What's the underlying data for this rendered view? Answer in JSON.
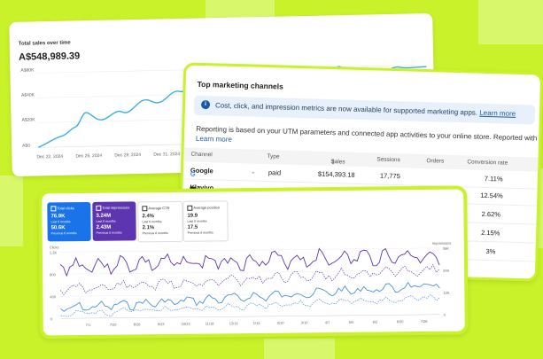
{
  "sales": {
    "title": "Total sales over time",
    "value": "A$548,989.39",
    "y_ticks": [
      "A$80K",
      "A$40K",
      "A$20K",
      "A$0"
    ],
    "x_ticks": [
      "Dec 22, 2024",
      "Dec 25, 2024",
      "Dec 28, 2024",
      "Dec 31, 2024"
    ],
    "line_color": "#3bb0e6"
  },
  "marketing": {
    "title": "Top marketing channels",
    "banner_text": "Cost, click, and impression metrics are now available for supported marketing apps.",
    "banner_link": "Learn more",
    "desc_line1": "Reporting is based on your UTM parameters and connected app activities to your online store. Reported with a 30-",
    "desc_link": "Learn more",
    "columns": [
      "Channel",
      "Type",
      "Sales",
      "Sessions",
      "Orders",
      "Conversion rate"
    ],
    "rows": [
      {
        "icon": "google-icon",
        "channel": "Google",
        "type": "paid",
        "sales": "$154,393.18",
        "sessions": "17,775",
        "orders": "",
        "conversion": "7.11%"
      },
      {
        "icon": "klaviyo-icon",
        "channel": "Klaviyo",
        "type": "",
        "sales": "",
        "sessions": "",
        "orders": "",
        "conversion": "12.54%"
      },
      {
        "channel": "",
        "conversion": "2.62%"
      },
      {
        "channel": "",
        "conversion": "2.15%"
      },
      {
        "channel": "",
        "conversion": "3%"
      }
    ]
  },
  "search_console": {
    "metrics": [
      {
        "label": "Total clicks",
        "value1": "76.9K",
        "sub1": "Last 6 months",
        "value2": "50.6K",
        "sub2": "Previous 6 months",
        "color": "#1a73e8",
        "light": false
      },
      {
        "label": "Total impressions",
        "value1": "3.24M",
        "sub1": "Last 6 months",
        "value2": "2.43M",
        "sub2": "Previous 6 months",
        "color": "#5e35b1",
        "light": false
      },
      {
        "label": "Average CTR",
        "value1": "2.4%",
        "sub1": "Last 6 months",
        "value2": "2.1%",
        "sub2": "Previous 6 months",
        "color": "#ffffff",
        "light": true
      },
      {
        "label": "Average position",
        "value1": "19.9",
        "sub1": "Last 6 months",
        "value2": "17.5",
        "sub2": "Previous 6 months",
        "color": "#ffffff",
        "light": true
      }
    ],
    "left_axis_title": "Clicks",
    "right_axis_title": "Impressions",
    "left_ticks": [
      "1.2K",
      "800",
      "400",
      "0"
    ],
    "right_ticks": [
      "36K",
      "24K",
      "12K",
      "0"
    ],
    "x_ticks": [
      "7/1",
      "7/29",
      "8/26",
      "9/23",
      "10/21",
      "11/18",
      "12/16",
      "1/13",
      "2/10",
      "3/10",
      "4/7",
      "5/5",
      "6/2",
      "6/30",
      "7/28"
    ],
    "clicks_color": "#4a90e2",
    "impressions_color": "#5e35b1"
  }
}
